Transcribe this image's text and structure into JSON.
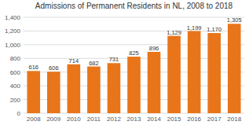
{
  "chart_data": {
    "type": "bar",
    "title": "Admissions of Permanent Residents in NL, 2008 to 2018",
    "categories": [
      "2008",
      "2009",
      "2010",
      "2011",
      "2012",
      "2013",
      "2014",
      "2015",
      "2016",
      "2017",
      "2018"
    ],
    "values": [
      616,
      606,
      714,
      682,
      731,
      825,
      896,
      1129,
      1199,
      1170,
      1305
    ],
    "value_labels": [
      "616",
      "606",
      "714",
      "682",
      "731",
      "825",
      "896",
      "1,129",
      "1,199",
      "1,170",
      "1,305"
    ],
    "data_labels": true,
    "color": "#E8751A",
    "ylim": [
      0,
      1400
    ],
    "yticks": [
      0,
      200,
      400,
      600,
      800,
      {
        "value": 1000,
        "label": "1,000"
      },
      {
        "value": 1200,
        "label": "1,200"
      },
      {
        "value": 1400,
        "label": "1,400"
      }
    ],
    "grid": true
  }
}
